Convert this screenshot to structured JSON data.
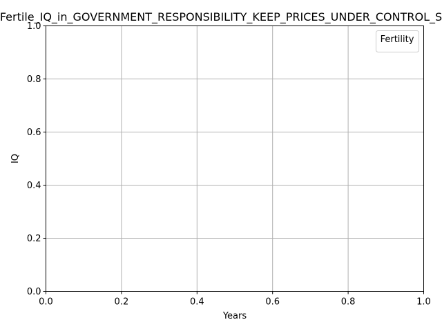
{
  "chart_data": {
    "type": "line",
    "title": "Fertile_IQ_in_GOVERNMENT_RESPONSIBILITY_KEEP_PRICES_UNDER_CONTROL_S",
    "xlabel": "Years",
    "ylabel": "IQ",
    "xlim": [
      0.0,
      1.0
    ],
    "ylim": [
      0.0,
      1.0
    ],
    "x_ticks": [
      "0.0",
      "0.2",
      "0.4",
      "0.6",
      "0.8",
      "1.0"
    ],
    "y_ticks": [
      "0.0",
      "0.2",
      "0.4",
      "0.6",
      "0.8",
      "1.0"
    ],
    "grid": true,
    "legend": {
      "title": "Fertility",
      "placement": "top-right",
      "entries": []
    },
    "series": []
  },
  "colors": {
    "grid": "#b0b0b0",
    "axis": "#000000",
    "background": "#ffffff"
  }
}
